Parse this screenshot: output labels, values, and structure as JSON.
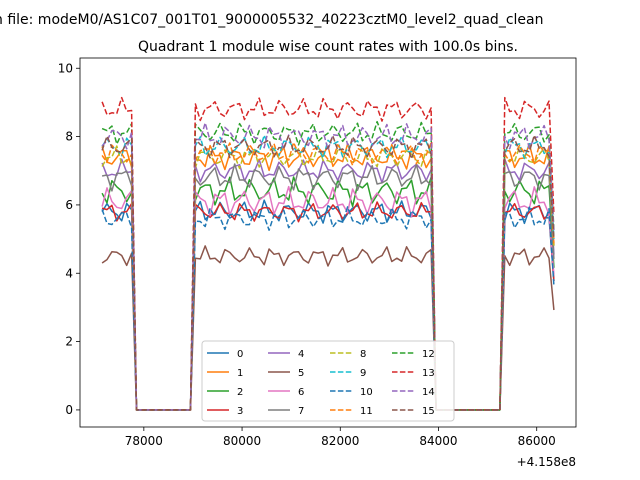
{
  "chart_data": {
    "type": "line",
    "suptitle": "n file: modeM0/AS1C07_001T01_9000005532_40223cztM0_level2_quad_clean",
    "title": "Quadrant 1 module wise count rates with 100.0s bins.",
    "xlabel": "",
    "ylabel": "",
    "offset_label": "+4.158e8",
    "xlim": [
      76700,
      86800
    ],
    "ylim": [
      -0.5,
      10.3
    ],
    "xticks": [
      78000,
      80000,
      82000,
      84000,
      86000
    ],
    "xtick_labels": [
      "78000",
      "80000",
      "82000",
      "84000",
      "86000"
    ],
    "yticks": [
      0,
      2,
      4,
      6,
      8,
      10
    ],
    "ytick_labels": [
      "0",
      "2",
      "4",
      "6",
      "8",
      "10"
    ],
    "legend": {
      "location": "lower center",
      "ncol": 4
    },
    "segments": [
      {
        "start": 77150,
        "end": 77750
      },
      {
        "start": 79050,
        "end": 83850
      },
      {
        "start": 85350,
        "end": 86350
      }
    ],
    "series": [
      {
        "name": "0",
        "style": "solid",
        "color": "#1f77b4",
        "level": 5.8,
        "amp": 0.35
      },
      {
        "name": "1",
        "style": "solid",
        "color": "#ff7f0e",
        "level": 7.4,
        "amp": 0.4
      },
      {
        "name": "2",
        "style": "solid",
        "color": "#2ca02c",
        "level": 6.4,
        "amp": 0.45
      },
      {
        "name": "3",
        "style": "solid",
        "color": "#d62728",
        "level": 5.8,
        "amp": 0.3
      },
      {
        "name": "4",
        "style": "solid",
        "color": "#9467bd",
        "level": 7.0,
        "amp": 0.35
      },
      {
        "name": "5",
        "style": "solid",
        "color": "#8c564b",
        "level": 4.5,
        "amp": 0.3
      },
      {
        "name": "6",
        "style": "solid",
        "color": "#e377c2",
        "level": 6.1,
        "amp": 0.45
      },
      {
        "name": "7",
        "style": "solid",
        "color": "#7f7f7f",
        "level": 6.8,
        "amp": 0.4
      },
      {
        "name": "8",
        "style": "dashed",
        "color": "#bcbd22",
        "level": 7.4,
        "amp": 0.35
      },
      {
        "name": "9",
        "style": "dashed",
        "color": "#17becf",
        "level": 7.7,
        "amp": 0.35
      },
      {
        "name": "10",
        "style": "dashed",
        "color": "#1f77b4",
        "level": 5.6,
        "amp": 0.35
      },
      {
        "name": "11",
        "style": "dashed",
        "color": "#ff7f0e",
        "level": 7.5,
        "amp": 0.35
      },
      {
        "name": "12",
        "style": "dashed",
        "color": "#2ca02c",
        "level": 8.1,
        "amp": 0.35
      },
      {
        "name": "13",
        "style": "dashed",
        "color": "#d62728",
        "level": 8.8,
        "amp": 0.35
      },
      {
        "name": "14",
        "style": "dashed",
        "color": "#9467bd",
        "level": 8.0,
        "amp": 0.4
      },
      {
        "name": "15",
        "style": "dashed",
        "color": "#8c564b",
        "level": 7.7,
        "amp": 0.35
      }
    ]
  }
}
